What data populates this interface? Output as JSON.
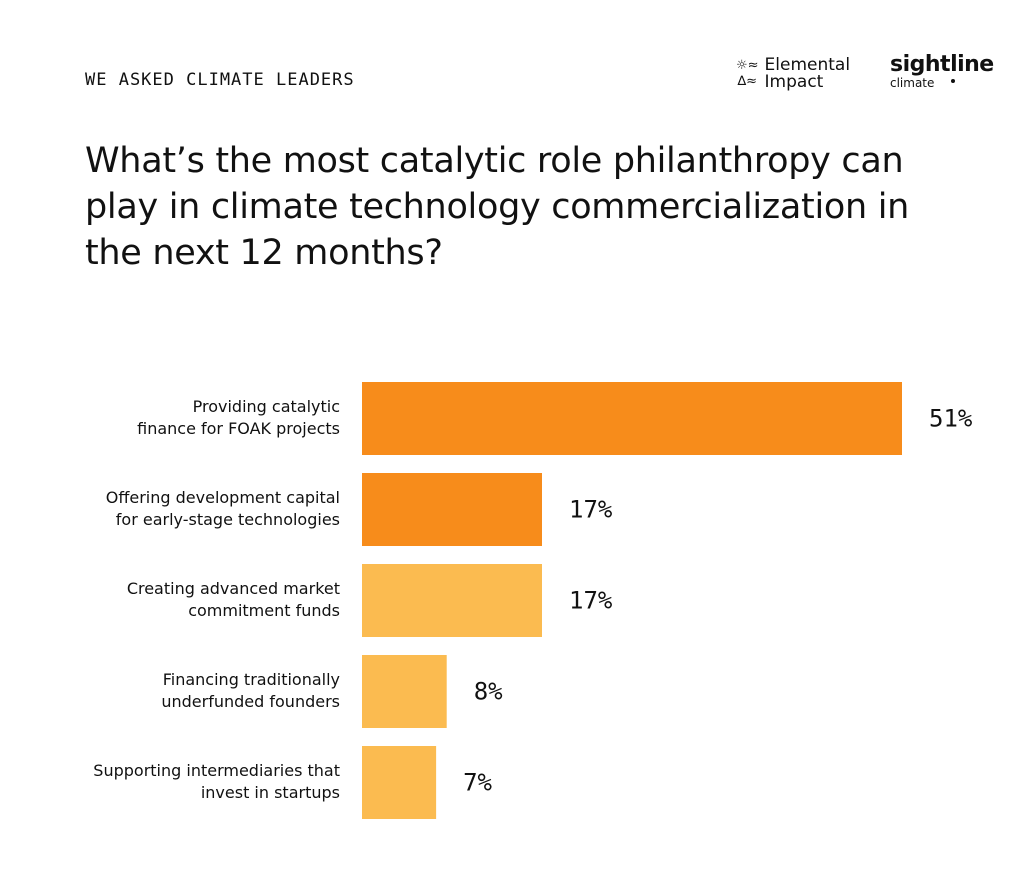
{
  "header": {
    "eyebrow": "WE ASKED CLIMATE LEADERS",
    "title": "What’s the most catalytic role philanthropy can play in climate technology commercialization in the next 12 months?"
  },
  "logos": {
    "elemental_line1": "Elemental",
    "elemental_line2": "Impact",
    "sightline_main": "sightline",
    "sightline_sub": "climate"
  },
  "colors": {
    "dark_orange": "#F78C1B",
    "light_orange": "#FBBB50"
  },
  "chart_data": {
    "type": "bar",
    "orientation": "horizontal",
    "categories": [
      [
        "Providing catalytic",
        "finance for FOAK projects"
      ],
      [
        "Offering development capital",
        "for early-stage technologies"
      ],
      [
        "Creating advanced market",
        "commitment funds"
      ],
      [
        "Financing traditionally",
        "underfunded founders"
      ],
      [
        "Supporting intermediaries that",
        "invest in startups"
      ]
    ],
    "values": [
      51,
      17,
      17,
      8,
      7
    ],
    "value_labels": [
      "51%",
      "17%",
      "17%",
      "8%",
      "7%"
    ],
    "bar_colors": [
      "#F78C1B",
      "#F78C1B",
      "#FBBB50",
      "#FBBB50",
      "#FBBB50"
    ],
    "unit": "%",
    "xlim": [
      0,
      51
    ],
    "grid": false,
    "legend": "none"
  }
}
